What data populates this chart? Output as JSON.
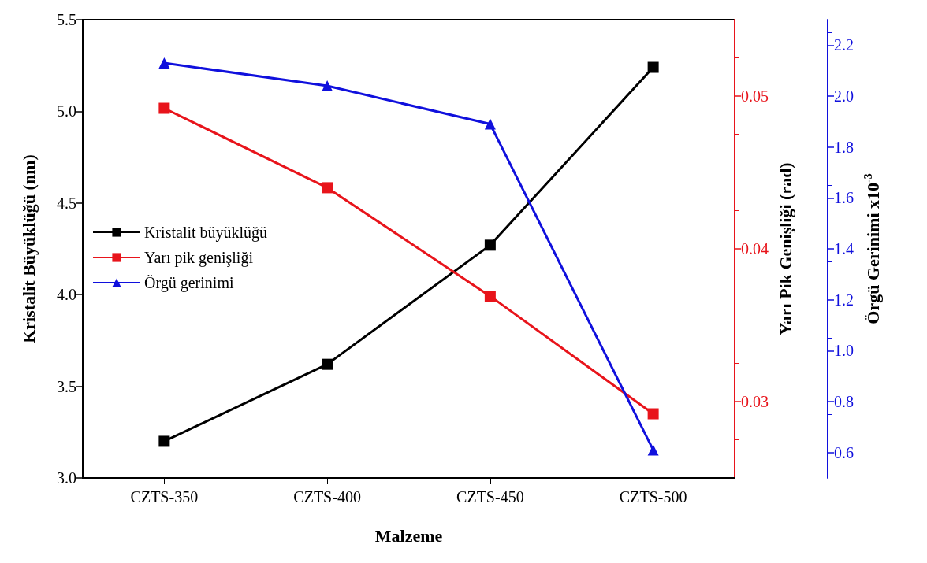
{
  "chart_data": {
    "type": "line",
    "xlabel": "Malzeme",
    "ylabel": "Kristalit Büyüklüğü (nm)",
    "y2label": "Yarı Pik Genişliği (rad)",
    "y3label": "Örgü Gerinimi x10$^{-3}$",
    "categories": [
      "CZTS-350",
      "CZTS-400",
      "CZTS-450",
      "CZTS-500"
    ],
    "series": [
      {
        "name": "Kristalit büyüklüğü",
        "color": "#000000",
        "marker": "square",
        "values": [
          3.2,
          3.62,
          4.27,
          5.24
        ]
      },
      {
        "name": "Yarı pik genişliği",
        "color": "#e8141b",
        "marker": "square",
        "axis": "y2",
        "values": [
          0.0492,
          0.044,
          0.0369,
          0.0292
        ]
      },
      {
        "name": "Örgü gerinimi",
        "color": "#1010dd",
        "marker": "triangle",
        "axis": "y3",
        "values": [
          2.13,
          2.04,
          1.89,
          0.61
        ]
      }
    ],
    "ylim": [
      3.0,
      5.5
    ],
    "yticks": [
      {
        "value": 3,
        "label": "3.0"
      },
      3.5,
      {
        "value": 4,
        "label": "4.0"
      },
      4.5,
      {
        "value": 5,
        "label": "5.0"
      },
      5.5
    ],
    "y2lim": [
      0.025,
      0.055
    ],
    "y2ticks": [
      0.03,
      0.04,
      0.05
    ],
    "y3lim": [
      0.5,
      2.3
    ],
    "y3ticks": [
      0.6,
      0.8,
      {
        "value": 1,
        "label": "1.0"
      },
      1.2,
      1.4,
      1.6,
      1.8,
      {
        "value": 2,
        "label": "2.0"
      },
      2.2
    ],
    "legend": "left",
    "grid": false,
    "line_style": "solid"
  }
}
